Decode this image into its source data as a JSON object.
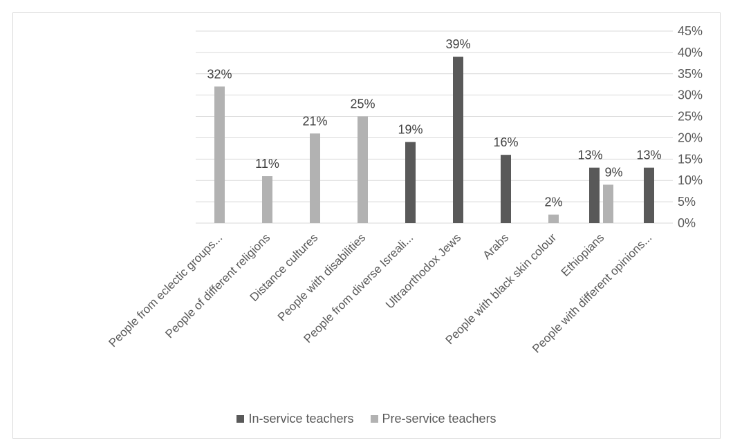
{
  "chart_data": {
    "type": "bar",
    "categories": [
      "People from eclectic groups...",
      "People of different religions",
      "Distance cultures",
      "People with disabilities",
      "People from diverse Isreali...",
      "Ultraorthodox Jews",
      "Arabs",
      "People with black skin colour",
      "Ethiopians",
      "People with different opinions..."
    ],
    "series": [
      {
        "name": "In-service teachers",
        "color": "#595959",
        "values": [
          null,
          null,
          null,
          null,
          19,
          39,
          16,
          null,
          13,
          13
        ],
        "labels": [
          "",
          "",
          "",
          "",
          "19%",
          "39%",
          "16%",
          "",
          "13%",
          "13%"
        ]
      },
      {
        "name": "Pre-service teachers",
        "color": "#b2b2b2",
        "values": [
          32,
          11,
          21,
          25,
          null,
          null,
          null,
          2,
          9,
          null
        ],
        "labels": [
          "32%",
          "11%",
          "21%",
          "25%",
          "",
          "",
          "",
          "2%",
          "9%",
          ""
        ]
      }
    ],
    "ylim": [
      0,
      45
    ],
    "yticks": [
      "0%",
      "5%",
      "10%",
      "15%",
      "20%",
      "25%",
      "30%",
      "35%",
      "40%",
      "45%"
    ],
    "y_axis_side": "right",
    "grid": true,
    "legend_position": "bottom"
  }
}
